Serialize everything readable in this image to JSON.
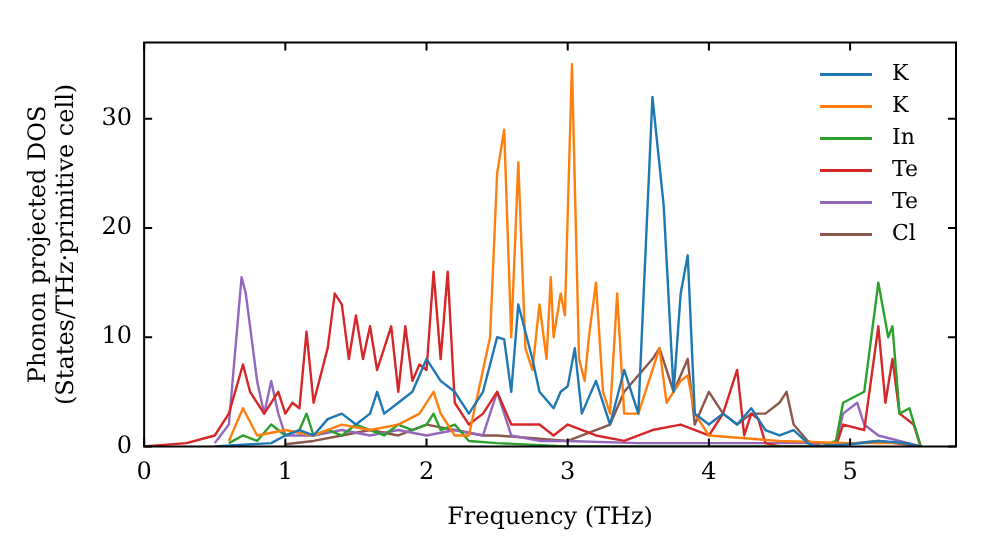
{
  "chart_data": {
    "type": "line",
    "xlabel": "Frequency (THz)",
    "ylabel": "Phonon projected DOS\n(States/THz·primitive cell)",
    "xlim": [
      0,
      5.75
    ],
    "ylim": [
      0,
      37
    ],
    "xticks": [
      0,
      1,
      2,
      3,
      4,
      5
    ],
    "yticks": [
      0,
      10,
      20,
      30
    ],
    "grid": false,
    "legend": "top right",
    "series": [
      {
        "name": "K",
        "color": "#1f77b4",
        "x": [
          0.5,
          0.9,
          1.0,
          1.1,
          1.2,
          1.3,
          1.4,
          1.5,
          1.6,
          1.65,
          1.7,
          1.8,
          1.9,
          2.0,
          2.1,
          2.2,
          2.3,
          2.4,
          2.5,
          2.55,
          2.6,
          2.65,
          2.75,
          2.8,
          2.9,
          2.95,
          3.0,
          3.05,
          3.1,
          3.2,
          3.3,
          3.4,
          3.5,
          3.6,
          3.68,
          3.75,
          3.8,
          3.85,
          3.9,
          4.0,
          4.1,
          4.2,
          4.3,
          4.4,
          4.5,
          4.6,
          4.7,
          4.75,
          5.0,
          5.2,
          5.4,
          5.5
        ],
        "values": [
          0,
          0.3,
          1,
          1.5,
          1,
          2.5,
          3,
          2,
          3,
          5,
          3,
          4,
          5,
          8,
          6,
          5,
          3,
          5,
          10,
          9.8,
          5,
          13,
          8,
          5,
          3.5,
          5,
          5.5,
          9,
          3,
          6,
          2,
          7,
          3,
          32,
          22,
          5,
          14,
          17.5,
          3,
          2,
          3,
          2,
          3.5,
          1.5,
          1,
          1.5,
          0.3,
          0,
          0.2,
          0.5,
          0.3,
          0
        ]
      },
      {
        "name": "K",
        "color": "#ff7f0e",
        "x": [
          0.6,
          0.7,
          0.8,
          1.0,
          1.2,
          1.4,
          1.6,
          1.8,
          1.95,
          2.05,
          2.1,
          2.2,
          2.3,
          2.4,
          2.45,
          2.5,
          2.55,
          2.6,
          2.65,
          2.7,
          2.75,
          2.8,
          2.85,
          2.88,
          2.9,
          2.95,
          2.98,
          3.03,
          3.08,
          3.12,
          3.15,
          3.2,
          3.25,
          3.3,
          3.35,
          3.4,
          3.5,
          3.55,
          3.65,
          3.7,
          3.8,
          3.85,
          3.9,
          4.0,
          4.5,
          5.0,
          5.4,
          5.5
        ],
        "values": [
          0.5,
          3.5,
          1,
          1.5,
          1,
          2,
          1.5,
          2,
          3,
          5,
          3,
          1,
          1,
          7,
          10,
          25,
          29,
          10,
          26,
          9,
          7,
          13,
          8,
          15.5,
          10,
          14,
          12,
          35,
          8,
          6,
          10,
          15,
          5,
          3,
          14,
          3,
          3,
          5,
          9,
          4,
          6,
          6.5,
          3,
          1,
          0.5,
          0.3,
          0.3,
          0
        ]
      },
      {
        "name": "In",
        "color": "#2ca02c",
        "x": [
          0.6,
          0.7,
          0.8,
          0.9,
          1.0,
          1.1,
          1.15,
          1.2,
          1.3,
          1.4,
          1.5,
          1.6,
          1.7,
          1.8,
          1.9,
          2.0,
          2.05,
          2.1,
          2.2,
          2.3,
          2.5,
          3.0,
          4.8,
          4.9,
          4.95,
          5.1,
          5.2,
          5.27,
          5.3,
          5.35,
          5.42,
          5.5
        ],
        "values": [
          0.3,
          1,
          0.5,
          2,
          1,
          1.5,
          3,
          1,
          1.5,
          1,
          2,
          1.5,
          1,
          2,
          1.5,
          2,
          3,
          1.5,
          2,
          0.5,
          0.3,
          0,
          0,
          0.5,
          4,
          5,
          15,
          10,
          11,
          3,
          3.5,
          0
        ]
      },
      {
        "name": "Te",
        "color": "#d62728",
        "x": [
          0,
          0.3,
          0.5,
          0.6,
          0.7,
          0.75,
          0.85,
          0.95,
          1.0,
          1.05,
          1.1,
          1.15,
          1.2,
          1.3,
          1.35,
          1.4,
          1.45,
          1.5,
          1.55,
          1.6,
          1.65,
          1.75,
          1.8,
          1.85,
          1.9,
          1.95,
          2.0,
          2.05,
          2.1,
          2.15,
          2.2,
          2.3,
          2.4,
          2.5,
          2.6,
          2.8,
          2.9,
          3.0,
          3.2,
          3.4,
          3.6,
          3.8,
          4.0,
          4.1,
          4.2,
          4.25,
          4.3,
          4.35,
          4.4,
          4.5,
          4.9,
          4.95,
          5.1,
          5.2,
          5.25,
          5.3,
          5.35,
          5.45,
          5.5
        ],
        "values": [
          0,
          0.3,
          1,
          3,
          7.5,
          5,
          3,
          5,
          3,
          4,
          3.5,
          10.5,
          4,
          9,
          14,
          13,
          8,
          12,
          8,
          11,
          7,
          11,
          5,
          11,
          6,
          7.5,
          7,
          16,
          8,
          16,
          4,
          2,
          3,
          5,
          2,
          2,
          1,
          2,
          1,
          0.5,
          1.5,
          2,
          1,
          3,
          7,
          1,
          3,
          2.5,
          0.3,
          0,
          0,
          2,
          1.5,
          11,
          4,
          8,
          3,
          2,
          0
        ]
      },
      {
        "name": "Te",
        "color": "#9467bd",
        "x": [
          0.5,
          0.6,
          0.69,
          0.72,
          0.8,
          0.85,
          0.9,
          0.95,
          1.0,
          1.2,
          1.4,
          1.6,
          1.8,
          2.0,
          2.2,
          2.4,
          2.5,
          2.6,
          2.8,
          3.0,
          3.5,
          4.0,
          4.9,
          4.95,
          5.05,
          5.1,
          5.2,
          5.5
        ],
        "values": [
          0.3,
          2,
          15.5,
          14,
          6,
          3,
          6,
          3,
          1,
          1,
          1.5,
          1,
          1.5,
          1,
          1.5,
          1,
          5,
          1,
          0.5,
          0.5,
          0.3,
          0.3,
          0.3,
          3,
          4,
          2,
          1,
          0
        ]
      },
      {
        "name": "Cl",
        "color": "#8c564b",
        "x": [
          1.0,
          1.2,
          1.4,
          1.6,
          1.8,
          2.0,
          2.2,
          2.4,
          2.5,
          3.0,
          3.3,
          3.4,
          3.6,
          3.65,
          3.75,
          3.85,
          3.9,
          4.0,
          4.1,
          4.2,
          4.3,
          4.4,
          4.5,
          4.55,
          4.6,
          4.7,
          4.8,
          5.2,
          5.5
        ],
        "values": [
          0.2,
          0.5,
          1,
          1.5,
          1,
          2,
          1.5,
          1,
          1,
          0.5,
          2,
          5,
          8,
          9,
          5,
          8,
          2,
          5,
          3,
          2,
          3,
          3,
          4,
          5,
          2,
          0.5,
          0,
          0.5,
          0
        ]
      }
    ]
  }
}
